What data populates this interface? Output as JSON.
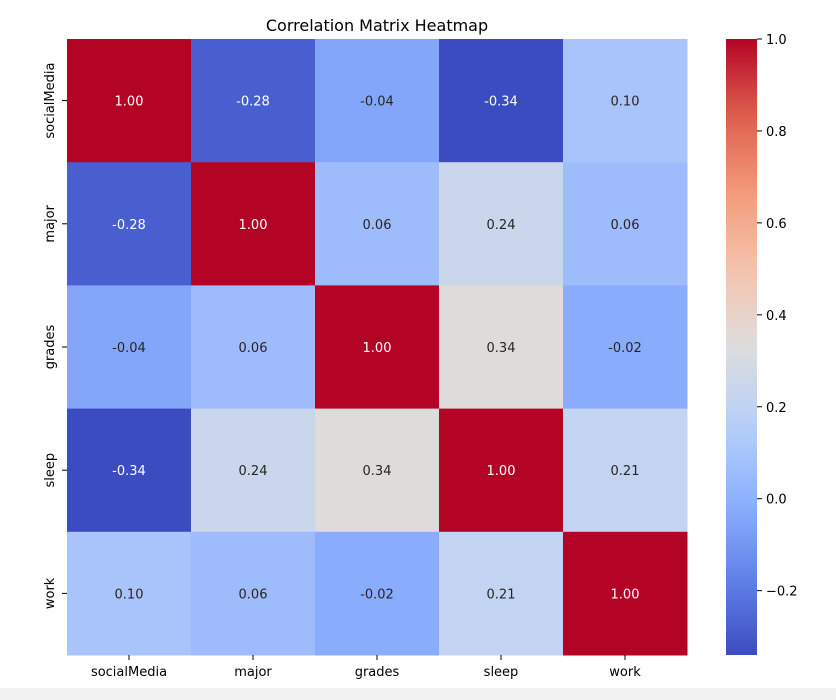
{
  "chart_data": {
    "type": "heatmap",
    "title": "Correlation Matrix Heatmap",
    "xlabel": "",
    "ylabel": "",
    "row_labels": [
      "socialMedia",
      "major",
      "grades",
      "sleep",
      "work"
    ],
    "col_labels": [
      "socialMedia",
      "major",
      "grades",
      "sleep",
      "work"
    ],
    "values": [
      [
        1.0,
        -0.28,
        -0.04,
        -0.34,
        0.1
      ],
      [
        -0.28,
        1.0,
        0.06,
        0.24,
        0.06
      ],
      [
        -0.04,
        0.06,
        1.0,
        0.34,
        -0.02
      ],
      [
        -0.34,
        0.24,
        0.34,
        1.0,
        0.21
      ],
      [
        0.1,
        0.06,
        -0.02,
        0.21,
        1.0
      ]
    ],
    "value_format": "0.00",
    "colormap": "coolwarm",
    "color_range": [
      -0.34,
      1.0
    ],
    "colorbar_ticks": [
      "1.0",
      "0.8",
      "0.6",
      "0.4",
      "0.2",
      "0.0",
      "−0.2"
    ],
    "colorbar_tick_values": [
      1.0,
      0.8,
      0.6,
      0.4,
      0.2,
      0.0,
      -0.2
    ],
    "grid": false,
    "colorbar_placement": "right"
  }
}
